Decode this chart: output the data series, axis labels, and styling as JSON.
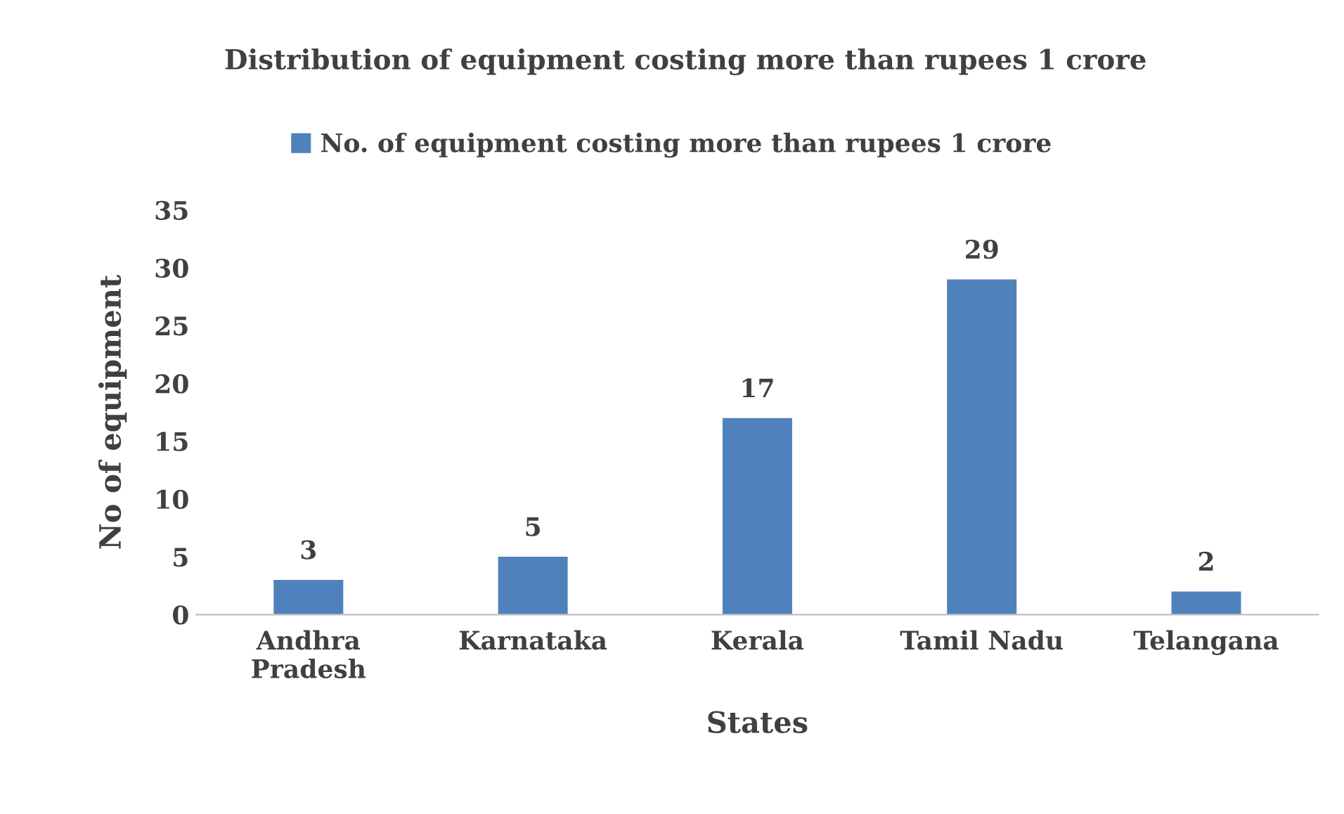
{
  "chart_data": {
    "type": "bar",
    "title": "Distribution of equipment costing more than rupees 1 crore",
    "xlabel": "States",
    "ylabel": "No of equipment",
    "categories": [
      "Andhra\nPradesh",
      "Karnataka",
      "Kerala",
      "Tamil Nadu",
      "Telangana"
    ],
    "series": [
      {
        "name": "No. of equipment costing more than rupees 1 crore",
        "color": "#4f81bd",
        "values": [
          3,
          5,
          17,
          29,
          2
        ]
      }
    ],
    "ylim": [
      0,
      35
    ],
    "yticks": [
      0,
      5,
      10,
      15,
      20,
      25,
      30,
      35
    ],
    "data_labels": true,
    "grid": false,
    "legend": "top"
  }
}
